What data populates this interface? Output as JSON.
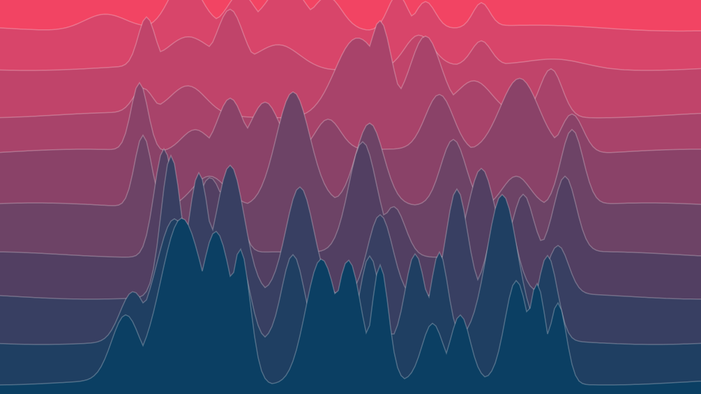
{
  "artwork": {
    "style": "layered ridgeline waves",
    "background": "#f24463",
    "layer_colors": [
      "#e8456a",
      "#d8456a",
      "#c0446a",
      "#a8436a",
      "#8a4268",
      "#6d4366",
      "#523f62",
      "#383f62",
      "#1f3f62",
      "#0b3f63"
    ],
    "stroke_color": "#ffffff"
  }
}
